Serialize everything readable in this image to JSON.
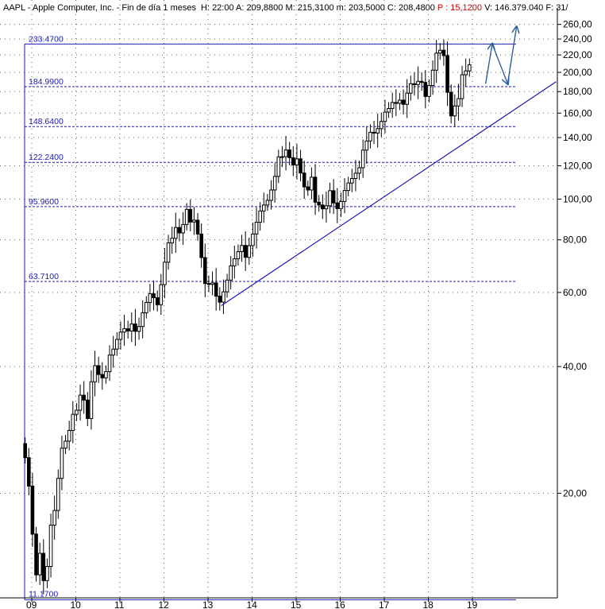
{
  "header": {
    "symbol": "AAPL",
    "name": "Apple Computer, Inc.",
    "period": "Fin de día 1 meses",
    "fields": [
      {
        "label": "H:",
        "value": "22:00",
        "red": false
      },
      {
        "label": "A:",
        "value": "209,8800",
        "red": false
      },
      {
        "label": "M:",
        "value": "215,3100",
        "red": false
      },
      {
        "label": "m:",
        "value": "203,5000",
        "red": false
      },
      {
        "label": "C:",
        "value": "208,4800",
        "red": false
      },
      {
        "label": "P :",
        "value": "15,1200",
        "red": true
      },
      {
        "label": "V:",
        "value": "146.379.040",
        "red": false
      },
      {
        "label": "F:",
        "value": "31/",
        "red": false
      }
    ]
  },
  "colors": {
    "candle": "#000000",
    "fib_lines": "#1a1ab4",
    "trendline": "#1a1ab4",
    "projection": "#2c5f9e",
    "grid": "#666666"
  },
  "chart_data": {
    "type": "candlestick",
    "y_scale": "log",
    "ylim": [
      10.9,
      270
    ],
    "xlim": [
      2008.7,
      2020.3
    ],
    "y_ticks": [
      "260,00",
      "240,00",
      "220,00",
      "200,00",
      "180,00",
      "160,00",
      "140,00",
      "120,00",
      "100,00",
      "80,00",
      "60,00",
      "40,00",
      "20,00"
    ],
    "x_ticks": [
      "09",
      "10",
      "11",
      "12",
      "13",
      "14",
      "15",
      "16",
      "17",
      "18",
      "19"
    ],
    "fib_levels": [
      "233.4700",
      "184.9900",
      "148.6400",
      "122.2400",
      "95.9600",
      "63.7100",
      "11.1700"
    ],
    "trendline": {
      "start": [
        2013.3,
        55.8
      ],
      "end": [
        2020.9,
        190
      ]
    },
    "projection_path": [
      [
        2019.3,
        188
      ],
      [
        2019.45,
        233.5
      ],
      [
        2019.8,
        188
      ],
      [
        2020.0,
        256
      ]
    ],
    "candles_close": [
      24.3,
      20.8,
      16.0,
      12.8,
      14.4,
      12.4,
      13.4,
      16.8,
      18.2,
      21.7,
      25.6,
      26.6,
      28.2,
      30.8,
      31.5,
      34.2,
      33.3,
      30.1,
      36.8,
      40.2,
      38.3,
      37.6,
      38.9,
      42.6,
      44.0,
      46.4,
      48.3,
      49.2,
      48.6,
      50.5,
      48.5,
      49.8,
      53.7,
      56.8,
      59.6,
      58.3,
      56.1,
      62.6,
      70.8,
      78.7,
      80.7,
      85.6,
      83.1,
      87.0,
      94.5,
      88.2,
      89.1,
      82.6,
      72.6,
      63.0,
      62.7,
      63.2,
      58.8,
      56.9,
      60.2,
      64.2,
      69.4,
      72.1,
      75.0,
      77.6,
      72.7,
      77.5,
      82.6,
      88.1,
      93.7,
      96.8,
      99.3,
      105.1,
      113.2,
      125.9,
      126.1,
      130.8,
      125.4,
      120.5,
      124.6,
      115.3,
      106.9,
      105.1,
      112.7,
      98.3,
      96.8,
      94.8,
      96.4,
      104.7,
      97.9,
      94.9,
      98.7,
      104.8,
      109.2,
      111.9,
      115.2,
      118.7,
      130.7,
      137.4,
      144.1,
      143.5,
      147.0,
      152.9,
      160.9,
      164.1,
      169.6,
      168.8,
      171.8,
      167.9,
      178.5,
      187.9,
      187.0,
      190.4,
      189.3,
      175.3,
      186.1,
      202.4,
      222.2,
      225.7,
      219.2,
      179.3,
      157.6,
      166.4,
      173.2,
      197.4,
      201.6,
      208.5
    ]
  }
}
